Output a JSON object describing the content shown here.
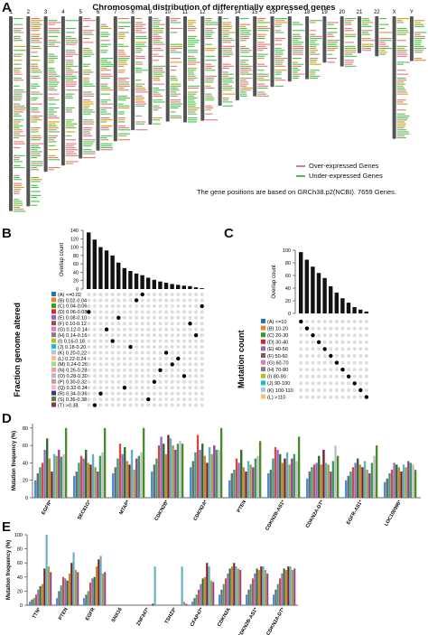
{
  "panel_a": {
    "letter": "A",
    "title": "Chromosomal distribution of differentially expressed genes",
    "chromosomes": [
      "1",
      "2",
      "3",
      "4",
      "5",
      "6",
      "7",
      "8",
      "9",
      "10",
      "11",
      "12",
      "13",
      "14",
      "15",
      "16",
      "17",
      "18",
      "19",
      "20",
      "21",
      "22",
      "X",
      "Y"
    ],
    "legend": {
      "over_label": "Over-expressed Genes",
      "under_label": "Under-expressed Genes",
      "over_color": "#e0787a",
      "under_color": "#4cc24c"
    },
    "note": "The gene positions are based on GRCh38.p2(NCBI). 7659 Genes."
  },
  "panel_b": {
    "letter": "B",
    "ylabel": "Overlap count",
    "yticks": [
      "0",
      "20",
      "40",
      "60",
      "80",
      "100",
      "120",
      "140"
    ],
    "set_title": "Fraction genome altered",
    "sets": [
      "(A) <=0.02",
      "(B) 0.02-0.04",
      "(C) 0.04-0.06",
      "(D) 0.06-0.08",
      "(E) 0.08-0.10",
      "(F) 0.10-0.12",
      "(G) 0.12-0.14",
      "(H) 0.14-0.16",
      "(I) 0.16-0.18",
      "(J) 0.18-0.20",
      "(K) 0.20-0.22",
      "(L) 0.22-0.24",
      "(M) 0.24-0.26",
      "(N) 0.26-0.28",
      "(O) 0.28-0.30",
      "(P) 0.30-0.32",
      "(Q) 0.32-0.34",
      "(R) 0.34-0.36",
      "(S) 0.36-0.38",
      "(T) >0.38"
    ]
  },
  "panel_c": {
    "letter": "C",
    "ylabel": "Overlap count",
    "yticks": [
      "0",
      "20",
      "40",
      "60",
      "80",
      "100"
    ],
    "set_title": "Mutation count",
    "sets": [
      "(A) <=10",
      "(B) 10-20",
      "(C) 20-30",
      "(D) 30-40",
      "(E) 40-50",
      "(F) 50-60",
      "(G) 60-70",
      "(H) 70-80",
      "(I) 80-90",
      "(J) 90-100",
      "(K) 100-110",
      "(L) >110"
    ]
  },
  "panel_d": {
    "letter": "D",
    "ylabel": "Mutation frequency (%)",
    "yticks": [
      "0",
      "20",
      "40",
      "60",
      "80"
    ],
    "categories": [
      "EGFR*",
      "SEC61G*",
      "MTAP*",
      "CDKN2B*",
      "CDKN2A*",
      "PTEN",
      "CDKN2B-AS1*",
      "CDKN2A-DT*",
      "EGFR-AS1*",
      "LOC100996*"
    ]
  },
  "panel_e": {
    "letter": "E",
    "ylabel": "Mutation frequency (%)",
    "yticks": [
      "0",
      "20",
      "40",
      "60",
      "80",
      "100"
    ],
    "categories": [
      "TTN*",
      "PTEN",
      "EGFR",
      "SNX16",
      "ZNF347*",
      "TSHZ3*",
      "CFAP47*",
      "CDKN2A",
      "CDKN2B-AS1*",
      "CDKN2A-DT*"
    ]
  },
  "chart_data": [
    {
      "type": "bar",
      "panel": "B",
      "ylabel": "Overlap count",
      "ylim": [
        0,
        140
      ],
      "values": [
        135,
        118,
        100,
        92,
        80,
        63,
        50,
        43,
        37,
        33,
        27,
        22,
        18,
        15,
        12,
        10,
        8,
        7,
        4,
        2
      ],
      "matrix_sets": [
        "D",
        "T",
        "R",
        "G",
        "I",
        "E",
        "Q",
        "J",
        "B",
        "A",
        "S",
        "P",
        "N",
        "K",
        "M",
        "L",
        "O",
        "F",
        "H",
        "C"
      ]
    },
    {
      "type": "bar",
      "panel": "C",
      "ylabel": "Overlap count",
      "ylim": [
        0,
        100
      ],
      "values": [
        97,
        85,
        74,
        64,
        56,
        43,
        33,
        24,
        17,
        10,
        6,
        3
      ],
      "matrix_sets": [
        "A",
        "B",
        "C",
        "D",
        "E",
        "F",
        "G",
        "H",
        "I",
        "J",
        "K",
        "L"
      ]
    },
    {
      "type": "bar",
      "panel": "D",
      "ylabel": "Mutation frequency (%)",
      "ylim": [
        0,
        85
      ],
      "categories": [
        "EGFR*",
        "SEC61G*",
        "MTAP*",
        "CDKN2B*",
        "CDKN2A*",
        "PTEN",
        "CDKN2B-AS1*",
        "CDKN2A-DT*",
        "EGFR-AS1*",
        "LOC100996*"
      ],
      "groups": [
        [
          20,
          28,
          35,
          40,
          55,
          68,
          45,
          30,
          50,
          48,
          55,
          47,
          50,
          80
        ],
        [
          25,
          30,
          40,
          48,
          45,
          55,
          40,
          38,
          50,
          35,
          30,
          48,
          52,
          80
        ],
        [
          28,
          35,
          45,
          62,
          50,
          58,
          42,
          38,
          55,
          32,
          45,
          48,
          52,
          80
        ],
        [
          30,
          38,
          45,
          60,
          70,
          62,
          50,
          72,
          68,
          60,
          55,
          62,
          65,
          62
        ],
        [
          35,
          42,
          52,
          72,
          55,
          62,
          48,
          40,
          58,
          50,
          60,
          55,
          55,
          80
        ],
        [
          20,
          28,
          32,
          45,
          40,
          55,
          35,
          30,
          42,
          38,
          35,
          45,
          48,
          65
        ],
        [
          28,
          32,
          45,
          58,
          55,
          50,
          40,
          45,
          52,
          38,
          45,
          50,
          42,
          70
        ],
        [
          22,
          30,
          35,
          38,
          40,
          48,
          38,
          55,
          40,
          38,
          30,
          42,
          60,
          48
        ],
        [
          20,
          25,
          30,
          35,
          40,
          45,
          38,
          35,
          42,
          32,
          28,
          40,
          48,
          60
        ],
        [
          18,
          22,
          28,
          32,
          40,
          38,
          35,
          30,
          38,
          35,
          42,
          40,
          38,
          32
        ]
      ]
    },
    {
      "type": "bar",
      "panel": "E",
      "ylabel": "Mutation frequency (%)",
      "ylim": [
        0,
        100
      ],
      "categories": [
        "TTN*",
        "PTEN",
        "EGFR",
        "SNX16",
        "ZNF347*",
        "TSHZ3*",
        "CFAP47*",
        "CDKN2A",
        "CDKN2B-AS1*",
        "CDKN2A-DT*"
      ],
      "groups": [
        [
          5,
          8,
          10,
          15,
          22,
          27,
          30,
          52,
          100,
          55,
          47
        ],
        [
          10,
          20,
          28,
          40,
          38,
          35,
          45,
          60,
          75,
          50,
          47
        ],
        [
          10,
          15,
          20,
          32,
          38,
          40,
          55,
          65,
          70,
          45,
          47
        ],
        [
          0,
          0,
          0,
          0,
          0,
          0,
          0,
          0,
          1,
          0,
          0
        ],
        [
          0,
          0,
          0,
          0,
          0,
          0,
          0,
          2,
          55,
          0,
          0
        ],
        [
          0,
          0,
          0,
          0,
          0,
          0,
          0,
          0,
          55,
          5,
          2
        ],
        [
          5,
          10,
          15,
          22,
          30,
          38,
          40,
          60,
          55,
          35,
          33
        ],
        [
          15,
          22,
          30,
          38,
          45,
          52,
          55,
          60,
          55,
          52,
          50
        ],
        [
          15,
          22,
          30,
          38,
          45,
          52,
          50,
          55,
          55,
          50,
          45
        ],
        [
          15,
          22,
          30,
          38,
          45,
          52,
          50,
          55,
          55,
          50,
          52
        ]
      ]
    }
  ]
}
